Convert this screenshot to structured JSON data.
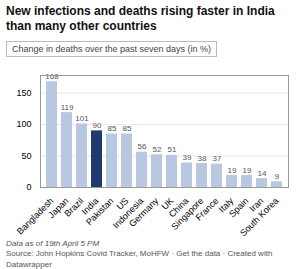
{
  "chart_data": {
    "type": "bar",
    "title": "New infections and deaths rising faster in India\nthan many other countries",
    "subtitle": "Change in deaths over the past seven days (in %)",
    "annotations": [
      "Data as of 19th April 5 PM",
      "Source: John Hopkins Covid Tracker, MoHFW · Get the data · Created with Datawrapper"
    ],
    "categories": [
      "Bangladesh",
      "Japan",
      "Brazil",
      "India",
      "Pakistan",
      "US",
      "Indonesia",
      "Germany",
      "UK",
      "China",
      "Singapore",
      "France",
      "Italy",
      "Spain",
      "Iran",
      "South Korea"
    ],
    "values": [
      168,
      119,
      101,
      90,
      85,
      85,
      56,
      52,
      51,
      39,
      38,
      37,
      19,
      19,
      14,
      9
    ],
    "colors": [
      "#b8c8e0",
      "#b8c8e0",
      "#b8c8e0",
      "#1e3a6e",
      "#b8c8e0",
      "#b8c8e0",
      "#b8c8e0",
      "#b8c8e0",
      "#b8c8e0",
      "#b8c8e0",
      "#b8c8e0",
      "#b8c8e0",
      "#b8c8e0",
      "#b8c8e0",
      "#b8c8e0",
      "#b8c8e0"
    ],
    "ylim": [
      0,
      178
    ],
    "yticks": [
      0,
      50,
      100,
      150
    ],
    "grid": true,
    "data_labels": true
  }
}
